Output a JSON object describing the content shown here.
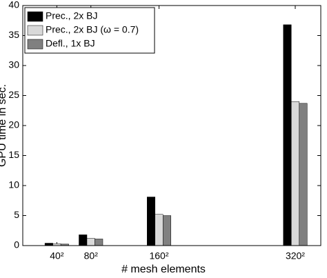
{
  "chart_data": {
    "type": "bar",
    "x": [
      40,
      80,
      160,
      320
    ],
    "xlabel": "# mesh elements",
    "ylabel": "GPU time in sec.",
    "xlim": [
      0,
      350
    ],
    "xticks": [
      {
        "value": 40,
        "label": "40²"
      },
      {
        "value": 80,
        "label": "80²"
      },
      {
        "value": 160,
        "label": "160²"
      },
      {
        "value": 320,
        "label": "320²"
      }
    ],
    "ylim": [
      0,
      40
    ],
    "yticks": [
      0,
      5,
      10,
      15,
      20,
      25,
      30,
      35,
      40
    ],
    "legend": "top-left",
    "series": [
      {
        "name": "Prec., 2x BJ",
        "color": "#000000",
        "values": [
          0.4,
          1.8,
          8.1,
          36.8
        ]
      },
      {
        "name": "Prec., 2x BJ (ω = 0.7)",
        "color": "#d9d9d9",
        "values": [
          0.3,
          1.2,
          5.2,
          24.0
        ]
      },
      {
        "name": "Defl., 1x BJ",
        "color": "#808080",
        "values": [
          0.25,
          1.1,
          5.0,
          23.7
        ]
      }
    ]
  }
}
